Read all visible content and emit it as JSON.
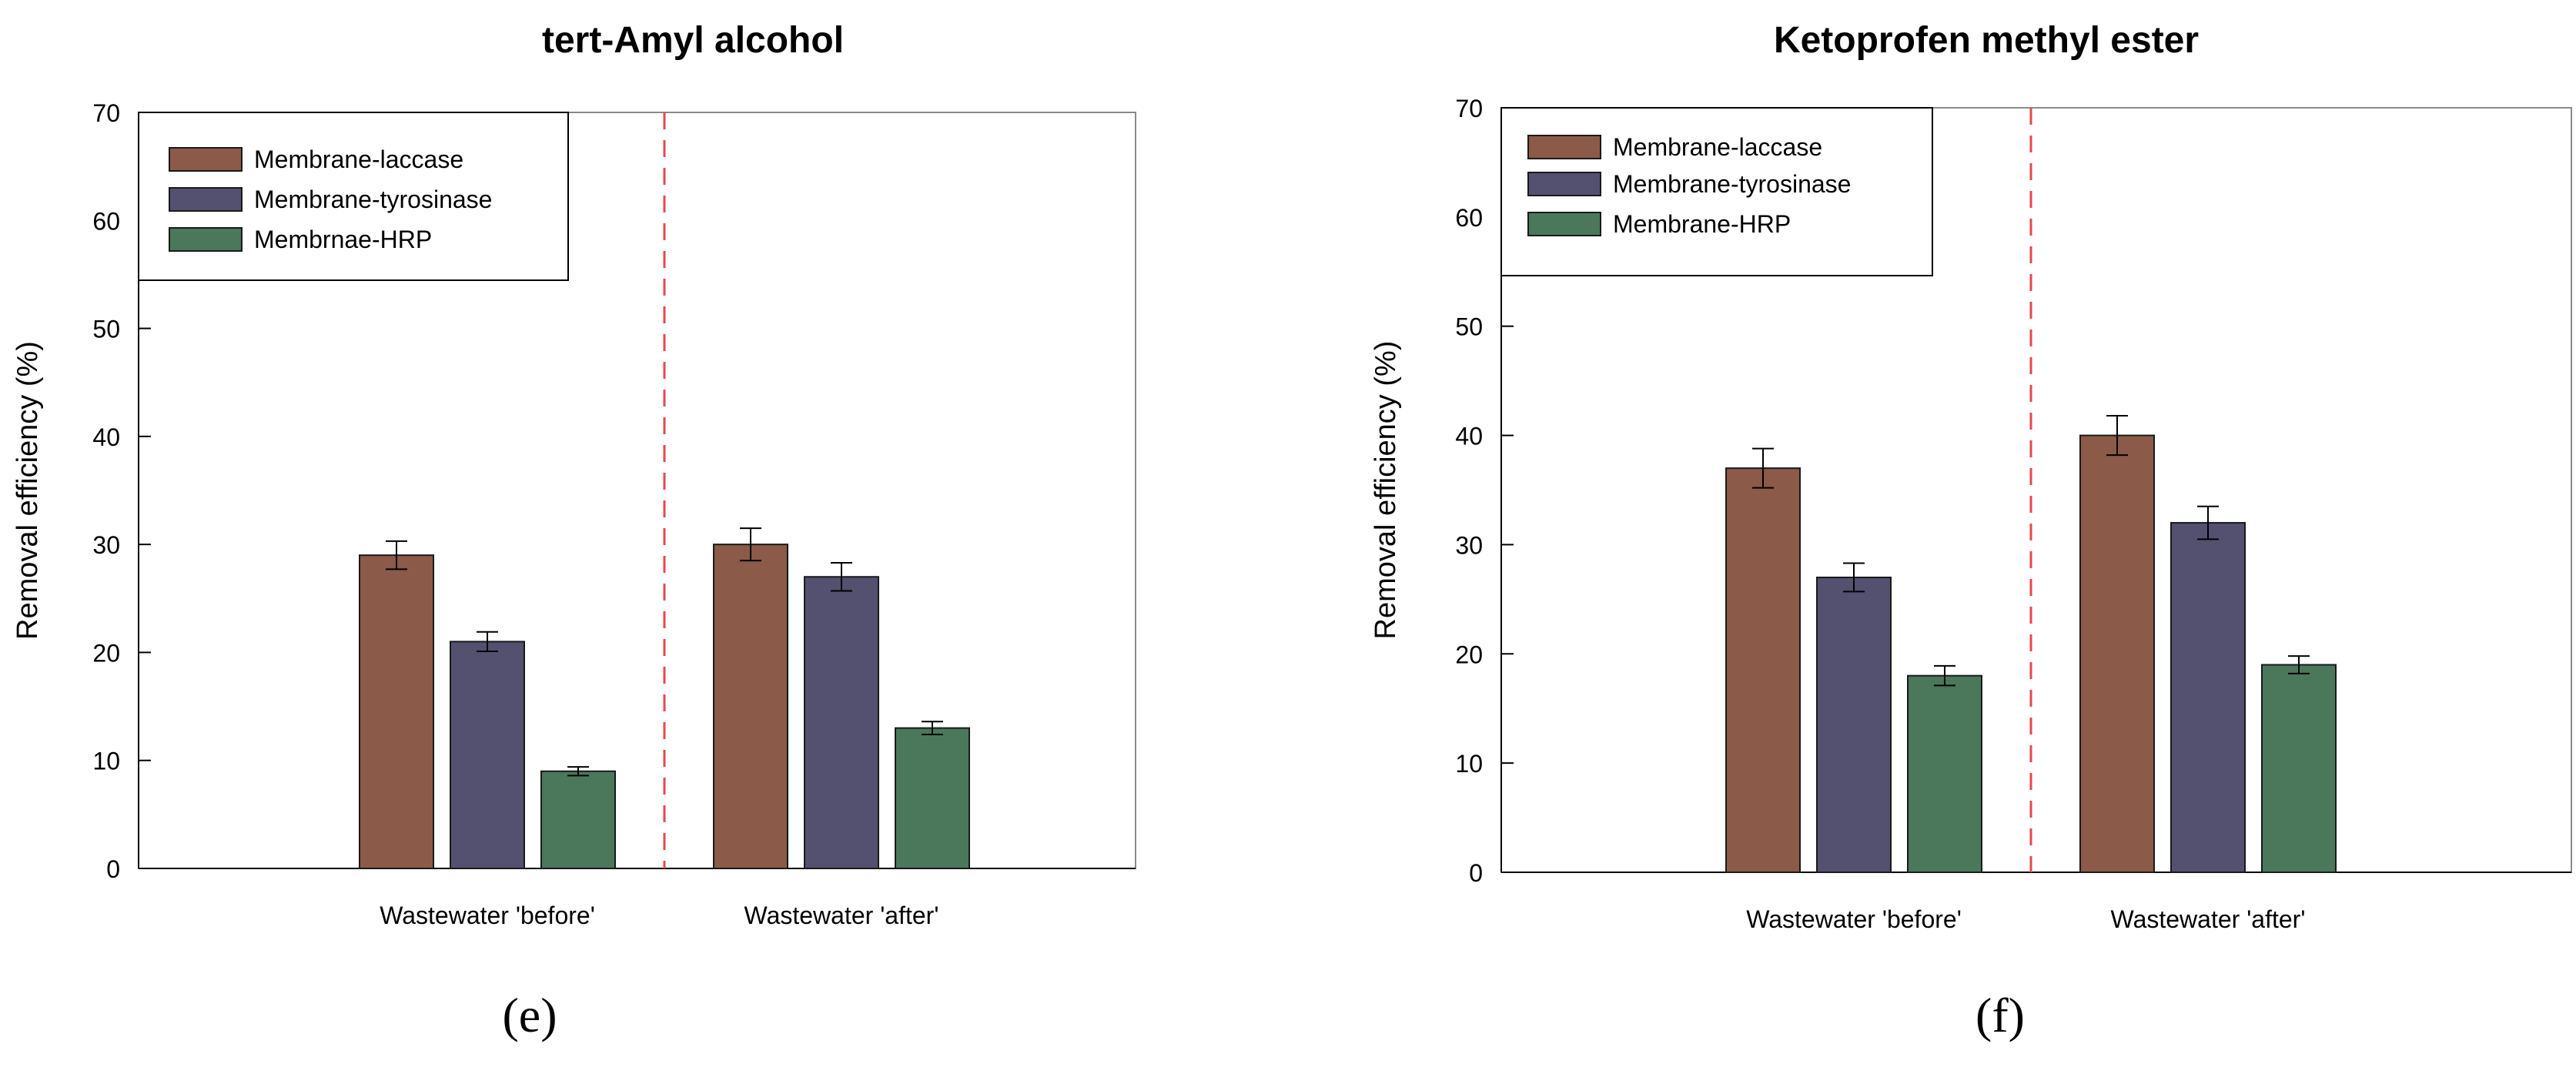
{
  "chart_data": [
    {
      "type": "bar",
      "title": "tert-Amyl alcohol",
      "panel_label": "(e)",
      "xlabel": "",
      "ylabel": "Removal efficiency (%)",
      "ylim": [
        0,
        70
      ],
      "yticks": [
        "0",
        "10",
        "20",
        "30",
        "40",
        "50",
        "60",
        "70"
      ],
      "categories": [
        "Wastewater 'before'",
        "Wastewater 'after'"
      ],
      "legend_position": "top-left",
      "divider": "dashed vertical line between groups",
      "series": [
        {
          "name": "Membrane-laccase",
          "values": [
            29,
            30
          ],
          "errors": [
            1.3,
            1.5
          ],
          "color": "#8b5a48"
        },
        {
          "name": "Membrane-tyrosinase",
          "values": [
            21,
            27
          ],
          "errors": [
            0.9,
            1.3
          ],
          "color": "#545070"
        },
        {
          "name": "Membrnae-HRP",
          "values": [
            9,
            13
          ],
          "errors": [
            0.4,
            0.6
          ],
          "color": "#4b775b"
        }
      ]
    },
    {
      "type": "bar",
      "title": "Ketoprofen methyl ester",
      "panel_label": "(f)",
      "xlabel": "",
      "ylabel": "Removal efficiency (%)",
      "ylim": [
        0,
        70
      ],
      "yticks": [
        "0",
        "10",
        "20",
        "30",
        "40",
        "50",
        "60",
        "70"
      ],
      "categories": [
        "Wastewater 'before'",
        "Wastewater 'after'"
      ],
      "legend_position": "top-left",
      "divider": "dashed vertical line between groups",
      "series": [
        {
          "name": "Membrane-laccase",
          "values": [
            37,
            40
          ],
          "errors": [
            1.8,
            1.8
          ],
          "color": "#8b5a48"
        },
        {
          "name": "Membrane-tyrosinase",
          "values": [
            27,
            32
          ],
          "errors": [
            1.3,
            1.5
          ],
          "color": "#545070"
        },
        {
          "name": "Membrane-HRP",
          "values": [
            18,
            19
          ],
          "errors": [
            0.9,
            0.8
          ],
          "color": "#4b775b"
        }
      ]
    }
  ],
  "colors": {
    "divider": "#e8474c",
    "axis": "#000000",
    "frame": "#8a8a8a"
  }
}
